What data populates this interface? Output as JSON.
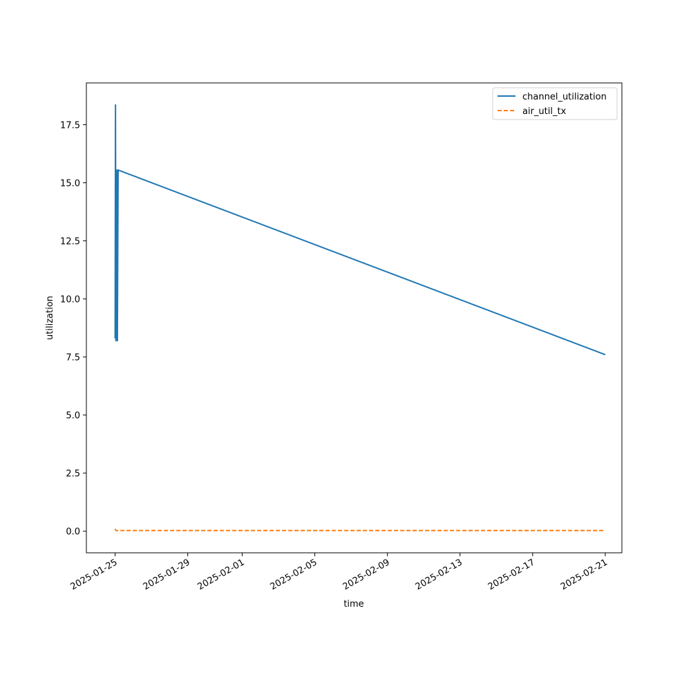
{
  "chart_data": {
    "type": "line",
    "title": "",
    "xlabel": "time",
    "ylabel": "utilization",
    "x_type": "date",
    "xlim": [
      "2025-01-23 10:00",
      "2025-02-21 22:00"
    ],
    "ylim": [
      -0.93,
      19.3
    ],
    "x_ticks": [
      "2025-01-25",
      "2025-01-29",
      "2025-02-01",
      "2025-02-05",
      "2025-02-09",
      "2025-02-13",
      "2025-02-17",
      "2025-02-21"
    ],
    "y_ticks": [
      0.0,
      2.5,
      5.0,
      7.5,
      10.0,
      12.5,
      15.0,
      17.5
    ],
    "y_tick_labels": [
      "0.0",
      "2.5",
      "5.0",
      "7.5",
      "10.0",
      "12.5",
      "15.0",
      "17.5"
    ],
    "grid": false,
    "legend_position": "upper-right",
    "series": [
      {
        "name": "channel_utilization",
        "color": "#1f77b4",
        "style": "solid",
        "points": [
          [
            "2025-01-25 00:00",
            8.3
          ],
          [
            "2025-01-25 00:30",
            18.35
          ],
          [
            "2025-01-25 01:00",
            8.2
          ],
          [
            "2025-01-25 01:30",
            8.3
          ],
          [
            "2025-01-25 02:30",
            15.55
          ],
          [
            "2025-01-25 03:00",
            8.2
          ],
          [
            "2025-01-25 04:00",
            15.55
          ],
          [
            "2025-02-21 00:00",
            7.6
          ]
        ]
      },
      {
        "name": "air_util_tx",
        "color": "#ff7f0e",
        "style": "dashed",
        "points": [
          [
            "2025-01-25 00:00",
            0.1
          ],
          [
            "2025-01-25 01:00",
            0.03
          ],
          [
            "2025-01-25 04:00",
            0.03
          ],
          [
            "2025-02-21 00:00",
            0.03
          ]
        ]
      }
    ]
  }
}
